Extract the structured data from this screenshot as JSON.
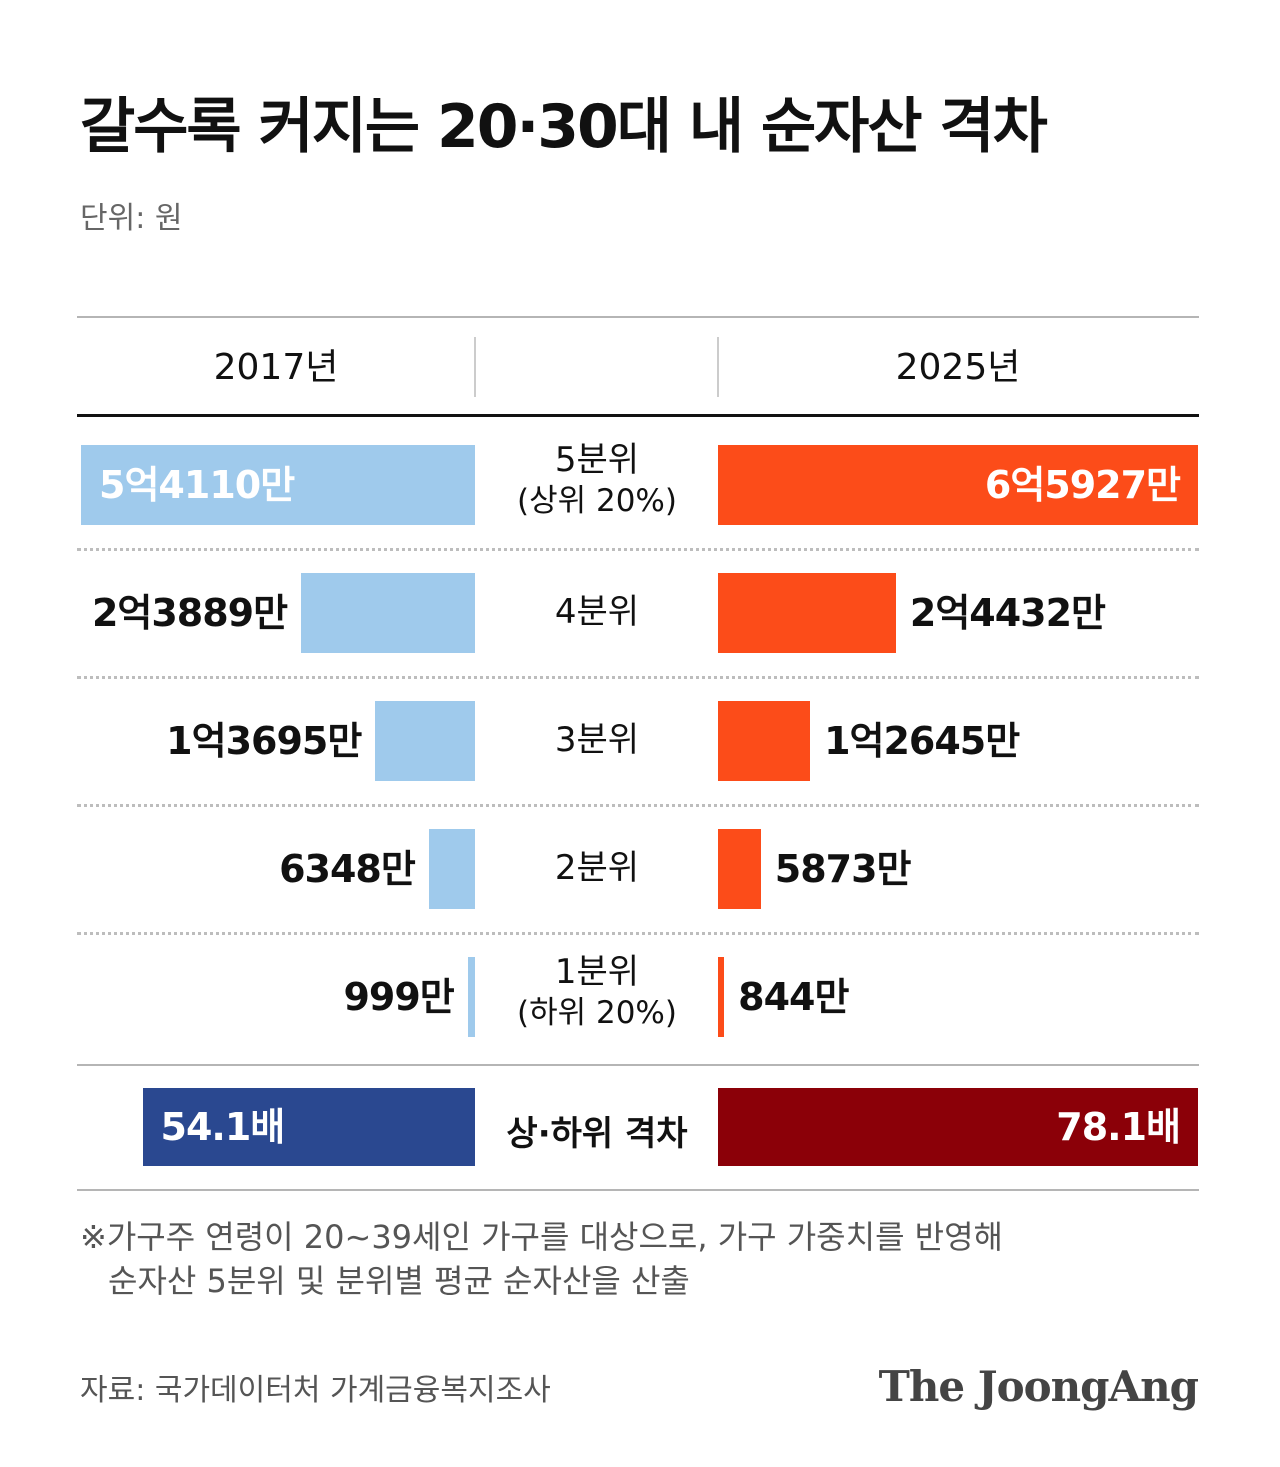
{
  "title": "갈수록 커지는 20·30대 내 순자산 격차",
  "unit": "단위: 원",
  "colors": {
    "bar_2017": "#9fcaec",
    "bar_2025": "#fc4c19",
    "gap_2017": "#2a4890",
    "gap_2025": "#8b0008"
  },
  "chart_data": {
    "type": "bar",
    "orientation": "horizontal-butterfly",
    "title": "갈수록 커지는 20·30대 내 순자산 격차",
    "unit": "단위: 원",
    "categories": [
      {
        "main": "5분위",
        "sub": "(상위 20%)"
      },
      {
        "main": "4분위",
        "sub": ""
      },
      {
        "main": "3분위",
        "sub": ""
      },
      {
        "main": "2분위",
        "sub": ""
      },
      {
        "main": "1분위",
        "sub": "(하위 20%)"
      }
    ],
    "series": [
      {
        "name": "2017년",
        "values": [
          541100000,
          238890000,
          136950000,
          63480000,
          9990000
        ],
        "labels": [
          "5억4110만",
          "2억3889만",
          "1억3695만",
          "6348만",
          "999만"
        ]
      },
      {
        "name": "2025년",
        "values": [
          659270000,
          244320000,
          126450000,
          58730000,
          8440000
        ],
        "labels": [
          "6억5927만",
          "2억4432만",
          "1억2645만",
          "5873만",
          "844만"
        ]
      }
    ],
    "gap": {
      "label": "상·하위 격차",
      "values": [
        54.1,
        78.1
      ],
      "labels": [
        "54.1배",
        "78.1배"
      ]
    }
  },
  "footnote": {
    "line1": "※가구주 연령이 20~39세인 가구를 대상으로, 가구 가중치를 반영해",
    "line2": "순자산 5분위 및 분위별 평균 순자산을 산출"
  },
  "source": "자료: 국가데이터처 가계금융복지조사",
  "logo": "The JoongAng"
}
